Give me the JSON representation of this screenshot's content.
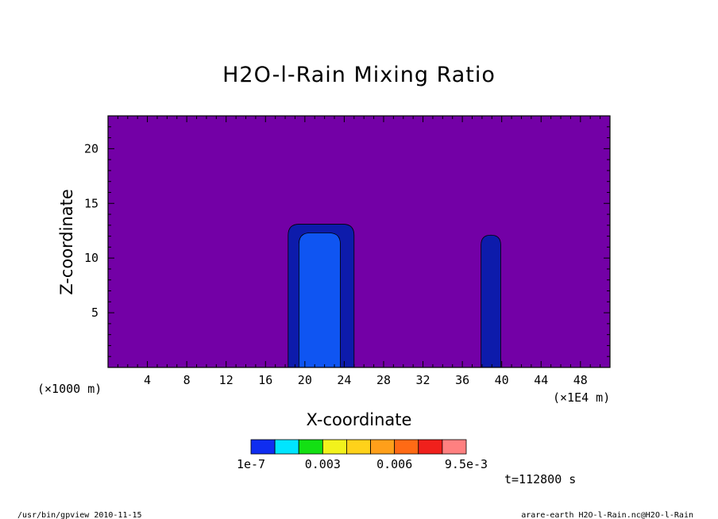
{
  "chart_data": {
    "type": "heatmap",
    "title": "H2O-l-Rain Mixing Ratio",
    "xlabel": "X-coordinate",
    "ylabel": "Z-coordinate",
    "x_unit_left": "(×1000 m)",
    "x_unit_right": "(×1E4 m)",
    "xlim": [
      0,
      51
    ],
    "ylim": [
      0,
      23
    ],
    "x_ticks": [
      4,
      8,
      12,
      16,
      20,
      24,
      28,
      32,
      36,
      40,
      44,
      48
    ],
    "y_ticks": [
      5,
      10,
      15,
      20
    ],
    "background_color": "#7300a6",
    "colorbar": {
      "colors": [
        "#0f2df0",
        "#00e5ff",
        "#13e013",
        "#f2f21c",
        "#ffd21a",
        "#ff9f1a",
        "#ff6a15",
        "#f0201c",
        "#ff8080"
      ],
      "labels": [
        "1e-7",
        "0.003",
        "0.006",
        "9.5e-3"
      ]
    },
    "regions": [
      {
        "name": "cloud-column-1-outer",
        "color": "#0d1bab",
        "x_range": [
          18.3,
          25.0
        ],
        "z_range": [
          0,
          13.1
        ]
      },
      {
        "name": "cloud-column-1-core",
        "color": "#0f55f2",
        "x_range": [
          19.4,
          23.6
        ],
        "z_range": [
          0,
          12.3
        ]
      },
      {
        "name": "cloud-column-2",
        "color": "#0d1bab",
        "x_range": [
          37.9,
          39.9
        ],
        "z_range": [
          0,
          12.1
        ]
      }
    ],
    "time_label": "t=112800 s",
    "footer_left": "/usr/bin/gpview  2010-11-15",
    "footer_right": "arare-earth_H2O-l-Rain.nc@H2O-l-Rain"
  }
}
